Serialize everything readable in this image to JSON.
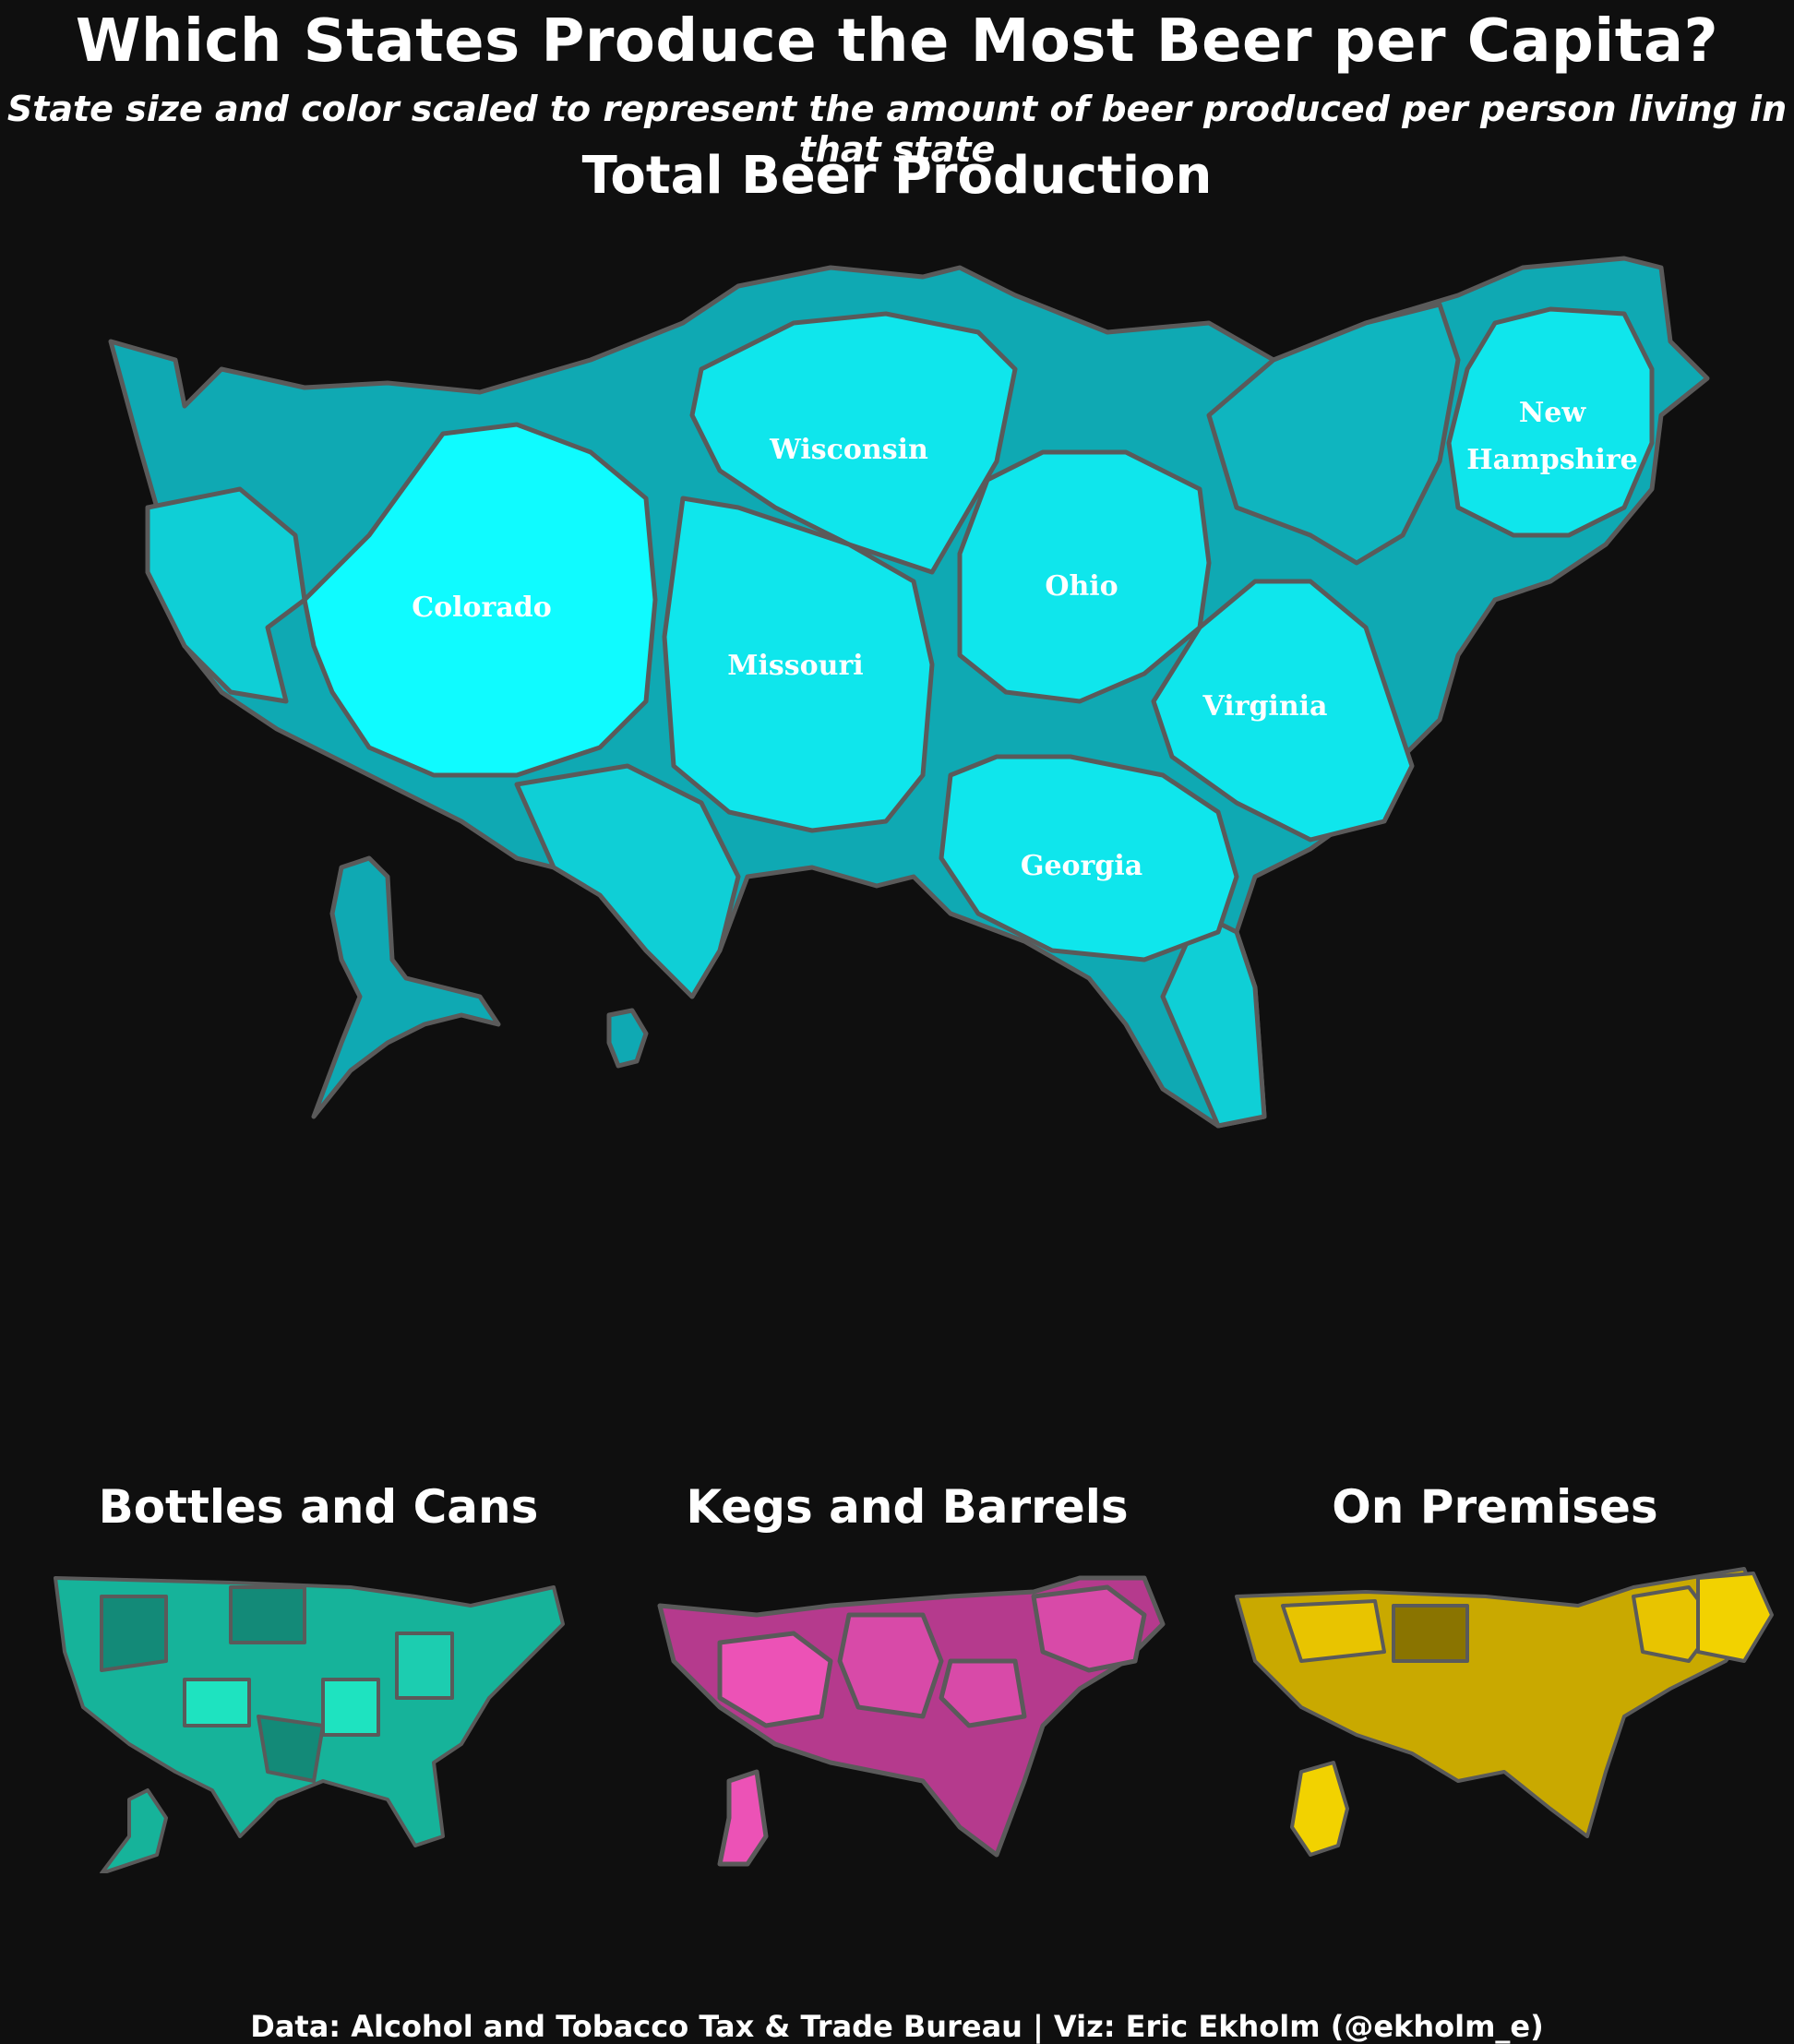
{
  "title": "Which States Produce the Most Beer per Capita?",
  "subtitle": "State size and color scaled to represent the amount of beer produced per person living in that state",
  "main_map": {
    "title": "Total Beer Production",
    "labeled_states": [
      "Wisconsin",
      "New Hampshire",
      "Colorado",
      "Ohio",
      "Missouri",
      "Virginia",
      "Georgia"
    ],
    "colors": {
      "high": "#0ffbff",
      "mid": "#0fcfd6",
      "low": "#0fa9b3",
      "border": "#5a5a5a"
    }
  },
  "panels": [
    {
      "title": "Bottles and Cans",
      "color_high": "#1ee3c0",
      "color_low": "#138a78"
    },
    {
      "title": "Kegs and Barrels",
      "color_high": "#ec52b6",
      "color_low": "#b53a8d"
    },
    {
      "title": "On Premises",
      "color_high": "#f2d200",
      "color_low": "#8a7400"
    }
  ],
  "footer": "Data: Alcohol and Tobacco Tax & Trade Bureau | Viz: Eric Ekholm (@ekholm_e)"
}
